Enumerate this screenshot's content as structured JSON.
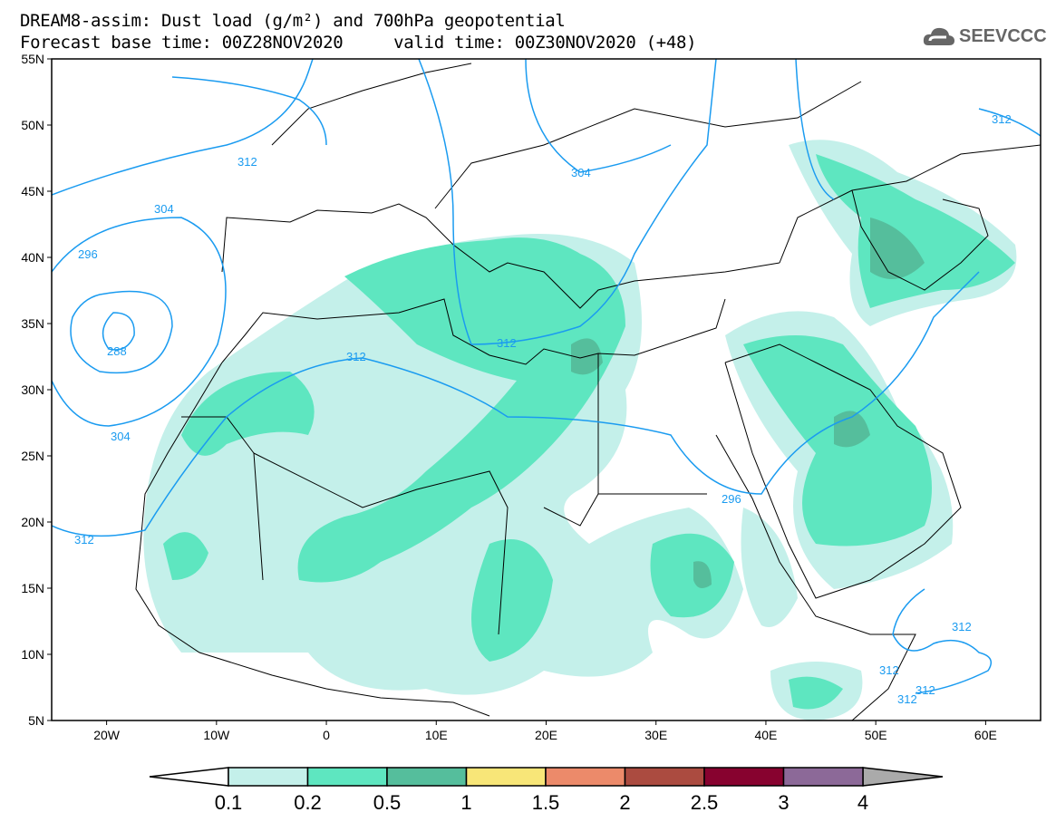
{
  "header": {
    "title": "DREAM8-assim: Dust load (g/m²) and 700hPa geopotential",
    "subtitle": "Forecast base time: 00Z28NOV2020     valid time: 00Z30NOV2020 (+48)",
    "logo": "SEEVCCC"
  },
  "map": {
    "lon_range": [
      -25,
      65
    ],
    "lat_range": [
      5,
      55
    ],
    "lat_labels": [
      "55N",
      "50N",
      "45N",
      "40N",
      "35N",
      "30N",
      "25N",
      "20N",
      "15N",
      "10N",
      "5N"
    ],
    "lon_labels": [
      "20W",
      "10W",
      "0",
      "10E",
      "20E",
      "30E",
      "40E",
      "50E",
      "60E"
    ],
    "contour_labels": [
      "312",
      "304",
      "296",
      "288",
      "304",
      "312",
      "312",
      "296",
      "304",
      "312",
      "312",
      "312",
      "312",
      "312",
      "312"
    ],
    "contour_color": "#1a9bf0"
  },
  "colorbar": {
    "labels": [
      "0.1",
      "0.2",
      "0.5",
      "1",
      "1.5",
      "2",
      "2.5",
      "3",
      "4"
    ],
    "colors": [
      "#c4f0ea",
      "#5ee6c0",
      "#55be9c",
      "#f8e678",
      "#ec8a6a",
      "#ab4b40",
      "#87022f",
      "#8c6998"
    ],
    "over_color": "#aaaaaa"
  }
}
